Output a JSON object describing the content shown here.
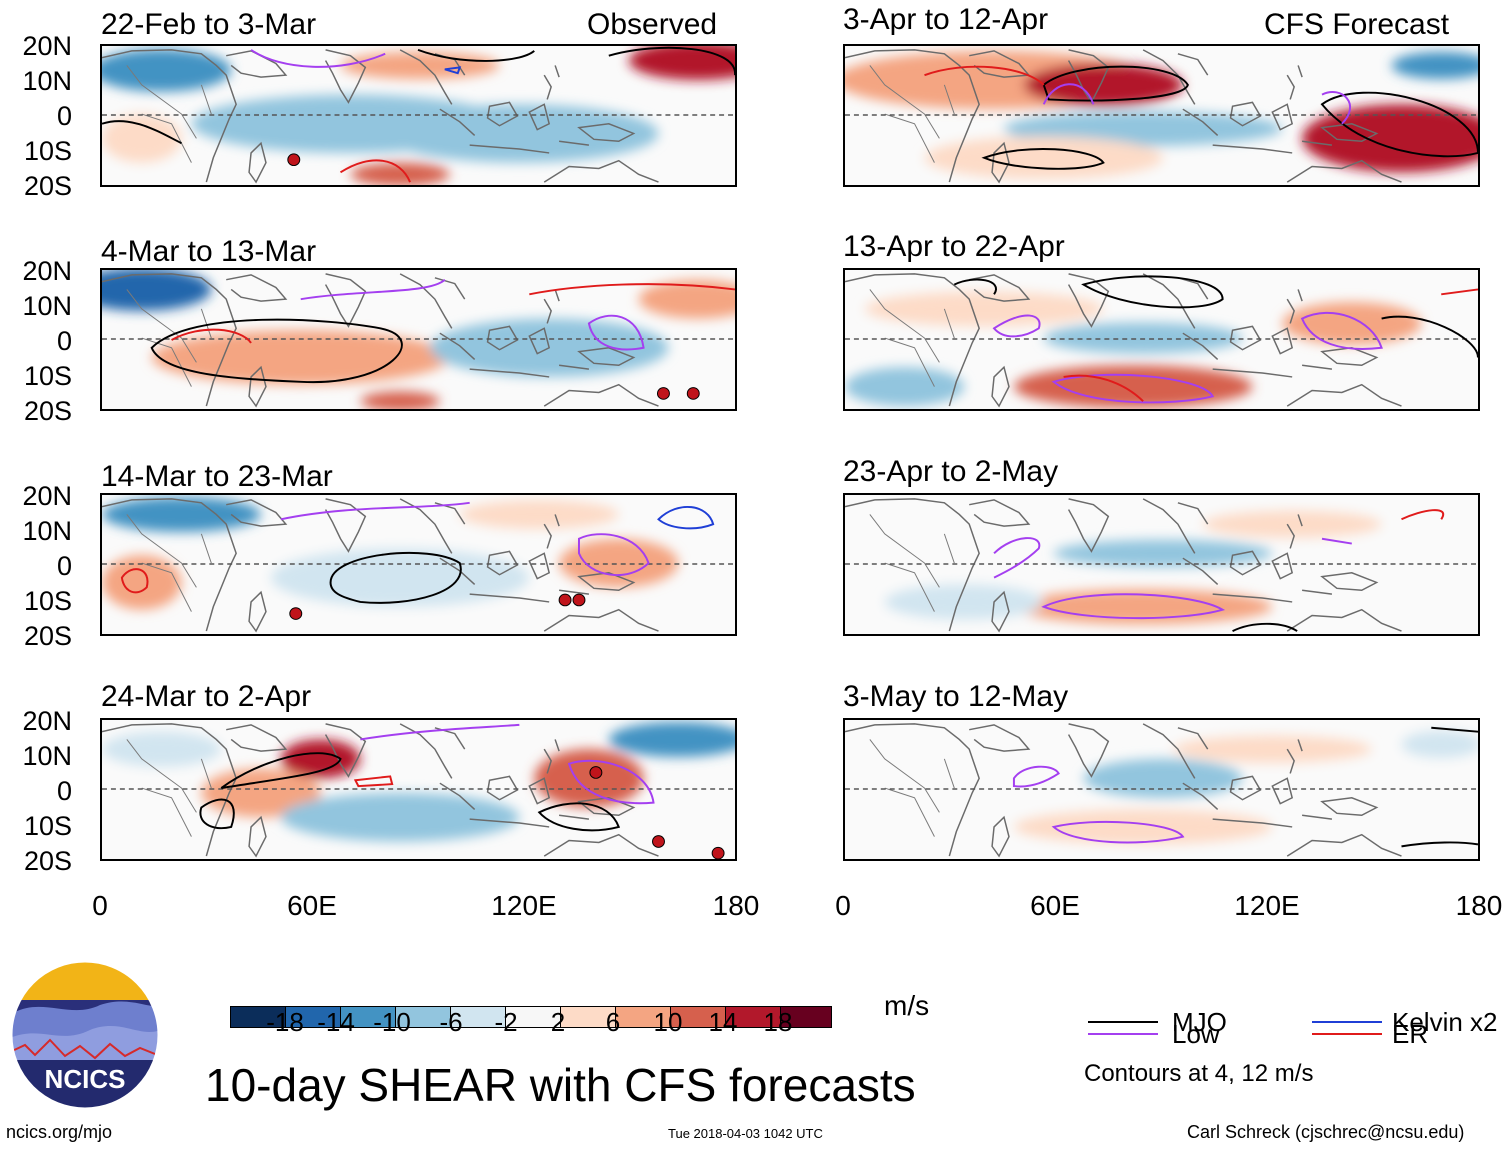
{
  "figure": {
    "title": "10-day SHEAR with CFS forecasts",
    "site": "ncics.org/mjo",
    "timestamp": "Tue 2018-04-03 1042 UTC",
    "author": "Carl Schreck (cjschrec@ncsu.edu)",
    "logo_text": "NCICS"
  },
  "headers": {
    "observed": "Observed",
    "forecast": "CFS Forecast"
  },
  "axes": {
    "lat_labels": [
      "20N",
      "10N",
      "0",
      "10S",
      "20S"
    ],
    "lon_labels": [
      "0",
      "60E",
      "120E",
      "180"
    ]
  },
  "panels": {
    "left": [
      {
        "title": "22-Feb to 3-Mar"
      },
      {
        "title": "4-Mar to 13-Mar"
      },
      {
        "title": "14-Mar to 23-Mar"
      },
      {
        "title": "24-Mar to 2-Apr"
      }
    ],
    "right": [
      {
        "title": "3-Apr to 12-Apr"
      },
      {
        "title": "13-Apr to 22-Apr"
      },
      {
        "title": "23-Apr to 2-May"
      },
      {
        "title": "3-May to 12-May"
      }
    ]
  },
  "colorbar": {
    "unit": "m/s",
    "levels": [
      "-18",
      "-14",
      "-10",
      "-6",
      "-2",
      "2",
      "6",
      "10",
      "14",
      "18"
    ],
    "colors": [
      "#0b2d5a",
      "#2166ac",
      "#4393c3",
      "#92c5de",
      "#d1e5f0",
      "#f7f7f7",
      "#fddbc7",
      "#f4a582",
      "#d6604d",
      "#b2182b",
      "#67001f"
    ]
  },
  "legend": {
    "items": [
      {
        "label": "MJO",
        "color": "#000000"
      },
      {
        "label": "Kelvin x2",
        "color": "#1f3fd6"
      },
      {
        "label": "Low",
        "color": "#a43ff0"
      },
      {
        "label": "ER",
        "color": "#e01b1b"
      }
    ],
    "note": "Contours at 4, 12 m/s"
  },
  "colors": {
    "mjo": "#000000",
    "kelvin": "#1f3fd6",
    "low": "#a43ff0",
    "er": "#e01b1b",
    "land": "#6b6b6b",
    "pos": "#f4a582",
    "pos_strong": "#d6604d",
    "neg": "#92c5de",
    "neg_strong": "#4393c3"
  }
}
